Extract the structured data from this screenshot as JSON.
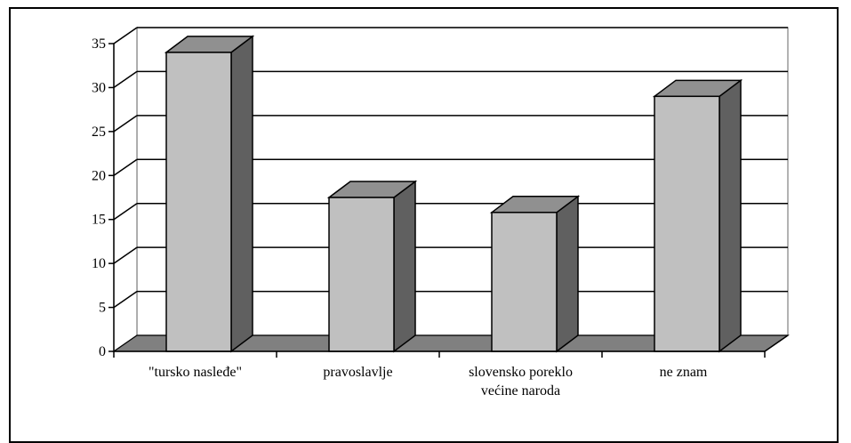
{
  "chart_data": {
    "type": "bar",
    "categories": [
      [
        "\"tursko nasleđe\""
      ],
      [
        "pravoslavlje"
      ],
      [
        "slovensko poreklo",
        "većine naroda"
      ],
      [
        "ne znam"
      ]
    ],
    "values": [
      34,
      17.5,
      15.8,
      29
    ],
    "ylim": [
      0,
      35
    ],
    "yticks": [
      0,
      5,
      10,
      15,
      20,
      25,
      30,
      35
    ],
    "grid": true,
    "style": "3d-column",
    "colors": {
      "bar_front": "#c0c0c0",
      "bar_side": "#606060",
      "bar_top": "#909090",
      "floor": "#808080",
      "wall": "#ffffff",
      "gridline": "#000000"
    }
  }
}
